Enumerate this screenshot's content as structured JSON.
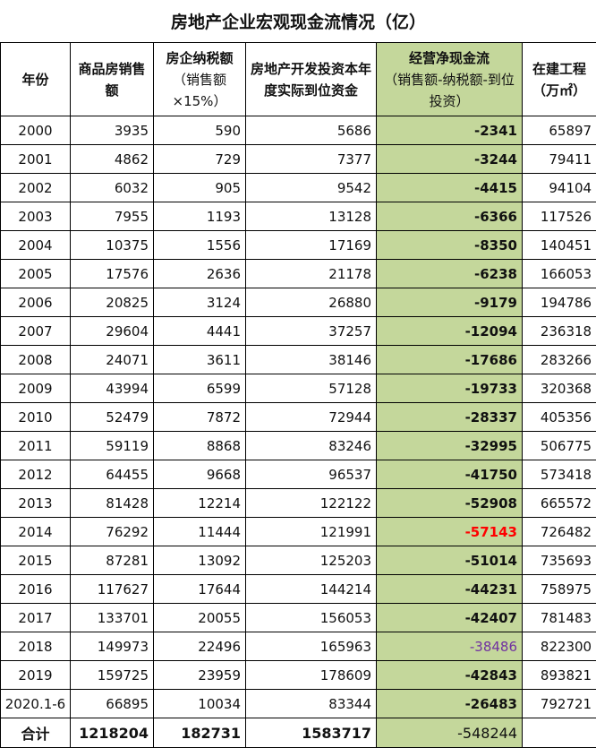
{
  "title": "房地产企业宏观现金流情况（亿）",
  "colors": {
    "highlight_column": "#c4d79b",
    "max_value": "#ff0000",
    "note_value": "#7030a0"
  },
  "headers": [
    {
      "main": "年份",
      "sub": ""
    },
    {
      "main": "商品房销售额",
      "sub": ""
    },
    {
      "main": "房企纳税额",
      "sub": "（销售额×15%）"
    },
    {
      "main": "房地产开发投资本年度实际到位资金",
      "sub": ""
    },
    {
      "main": "经营净现金流",
      "sub": "（销售额-纳税额-到位投资）"
    },
    {
      "main": "在建工程（万㎡）",
      "sub": ""
    }
  ],
  "rows": [
    [
      "2000",
      "3935",
      "590",
      "5686",
      "-2341",
      "65897"
    ],
    [
      "2001",
      "4862",
      "729",
      "7377",
      "-3244",
      "79411"
    ],
    [
      "2002",
      "6032",
      "905",
      "9542",
      "-4415",
      "94104"
    ],
    [
      "2003",
      "7955",
      "1193",
      "13128",
      "-6366",
      "117526"
    ],
    [
      "2004",
      "10375",
      "1556",
      "17169",
      "-8350",
      "140451"
    ],
    [
      "2005",
      "17576",
      "2636",
      "21178",
      "-6238",
      "166053"
    ],
    [
      "2006",
      "20825",
      "3124",
      "26880",
      "-9179",
      "194786"
    ],
    [
      "2007",
      "29604",
      "4441",
      "37257",
      "-12094",
      "236318"
    ],
    [
      "2008",
      "24071",
      "3611",
      "38146",
      "-17686",
      "283266"
    ],
    [
      "2009",
      "43994",
      "6599",
      "57128",
      "-19733",
      "320368"
    ],
    [
      "2010",
      "52479",
      "7872",
      "72944",
      "-28337",
      "405356"
    ],
    [
      "2011",
      "59119",
      "8868",
      "83246",
      "-32995",
      "506775"
    ],
    [
      "2012",
      "64455",
      "9668",
      "96537",
      "-41750",
      "573418"
    ],
    [
      "2013",
      "81428",
      "12214",
      "122122",
      "-52908",
      "665572"
    ],
    [
      "2014",
      "76292",
      "11444",
      "121991",
      "-57143",
      "726482"
    ],
    [
      "2015",
      "87281",
      "13092",
      "125203",
      "-51014",
      "735693"
    ],
    [
      "2016",
      "117627",
      "17644",
      "144214",
      "-44231",
      "758975"
    ],
    [
      "2017",
      "133701",
      "20055",
      "156053",
      "-42407",
      "781483"
    ],
    [
      "2018",
      "149973",
      "22496",
      "165963",
      "-38486",
      "822300"
    ],
    [
      "2019",
      "159725",
      "23959",
      "178609",
      "-42843",
      "893821"
    ],
    [
      "2020.1-6",
      "66895",
      "10034",
      "83344",
      "-26483",
      "792721"
    ]
  ],
  "total": [
    "合计",
    "1218204",
    "182731",
    "1583717",
    "-548244",
    ""
  ]
}
